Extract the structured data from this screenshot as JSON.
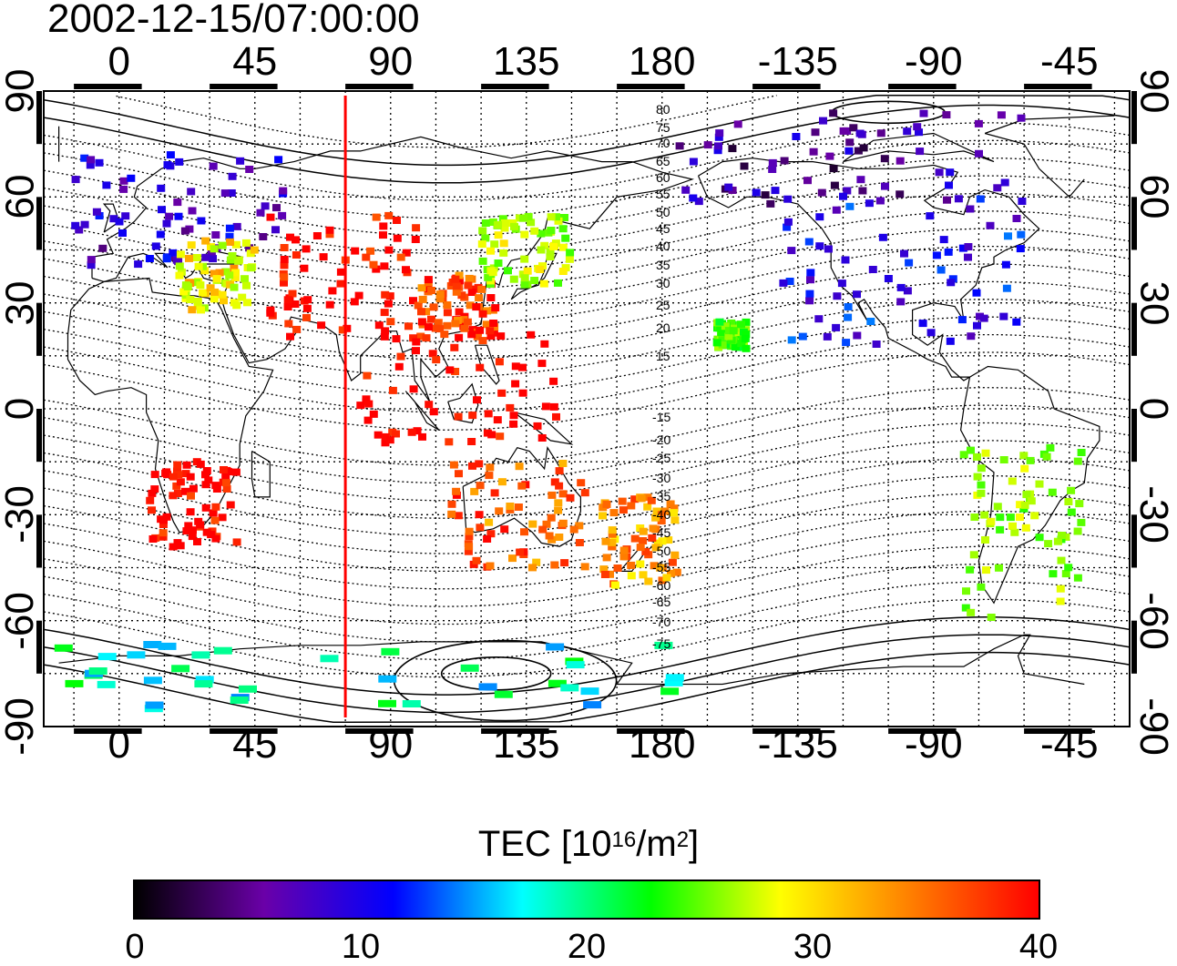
{
  "title": "2002-12-15/07:00:00",
  "axes": {
    "top_ticks": [
      "0",
      "45",
      "90",
      "135",
      "180",
      "-135",
      "-90",
      "-45"
    ],
    "bottom_ticks": [
      "0",
      "45",
      "90",
      "135",
      "180",
      "-135",
      "-90",
      "-45"
    ],
    "left_ticks": [
      "90",
      "60",
      "30",
      "0",
      "-30",
      "-60",
      "-90"
    ],
    "right_ticks": [
      "90",
      "60",
      "30",
      "0",
      "-30",
      "-60",
      "-90"
    ],
    "lon_range": [
      -25,
      335
    ],
    "lat_range": [
      -90,
      90
    ],
    "grid": true
  },
  "marker": {
    "type": "vertical line",
    "longitude": 75,
    "color": "#ff0000"
  },
  "contour_labels": {
    "north": [
      "80",
      "75",
      "70",
      "65",
      "60",
      "55",
      "50",
      "45",
      "40",
      "35",
      "30",
      "25",
      "20",
      "15"
    ],
    "south": [
      "-15",
      "-20",
      "-25",
      "-30",
      "-35",
      "-40",
      "-45",
      "-50",
      "-55",
      "-60",
      "-65",
      "-70",
      "-75"
    ]
  },
  "colorbar": {
    "title_main": "TEC  [10",
    "title_sup1": "16",
    "title_mid": "/m",
    "title_sup2": "2",
    "title_end": "]",
    "ticks": [
      "0",
      "10",
      "20",
      "30",
      "40"
    ],
    "range": [
      0,
      40
    ],
    "colors": [
      "#000000",
      "#6a00a8",
      "#0000ff",
      "#00ffff",
      "#00ff00",
      "#ffff00",
      "#ff8000",
      "#ff0000"
    ]
  },
  "tec_regions": [
    {
      "name": "europe",
      "tec": 7
    },
    {
      "name": "east-mediterranean",
      "tec": 30
    },
    {
      "name": "middle-east-asia",
      "tec": 40
    },
    {
      "name": "east-asia",
      "tec": 37
    },
    {
      "name": "japan",
      "tec": 27
    },
    {
      "name": "north-america",
      "tec": 9
    },
    {
      "name": "canada-alaska",
      "tec": 5
    },
    {
      "name": "southeast-asia",
      "tec": 40
    },
    {
      "name": "australia",
      "tec": 36
    },
    {
      "name": "new-zealand",
      "tec": 34
    },
    {
      "name": "south-america",
      "tec": 26
    },
    {
      "name": "antarctica",
      "tec": 17
    },
    {
      "name": "southern-africa",
      "tec": 40
    },
    {
      "name": "hawaii",
      "tec": 24
    }
  ]
}
